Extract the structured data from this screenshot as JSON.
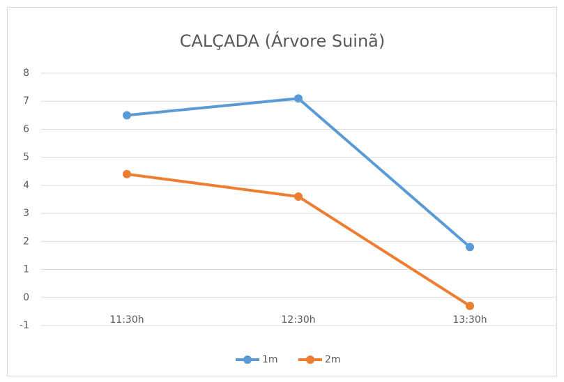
{
  "chart_data": {
    "type": "line",
    "title": "CALÇADA (Árvore Suinã)",
    "categories": [
      "11:30h",
      "12:30h",
      "13:30h"
    ],
    "series": [
      {
        "name": "1m",
        "color": "#5b9bd5",
        "values": [
          6.5,
          7.1,
          1.8
        ]
      },
      {
        "name": "2m",
        "color": "#ed7d31",
        "values": [
          4.4,
          3.6,
          -0.3
        ]
      }
    ],
    "ylim": [
      -1,
      8
    ],
    "yticks": [
      -1,
      0,
      1,
      2,
      3,
      4,
      5,
      6,
      7,
      8
    ],
    "grid": true,
    "legend": "bottom"
  }
}
